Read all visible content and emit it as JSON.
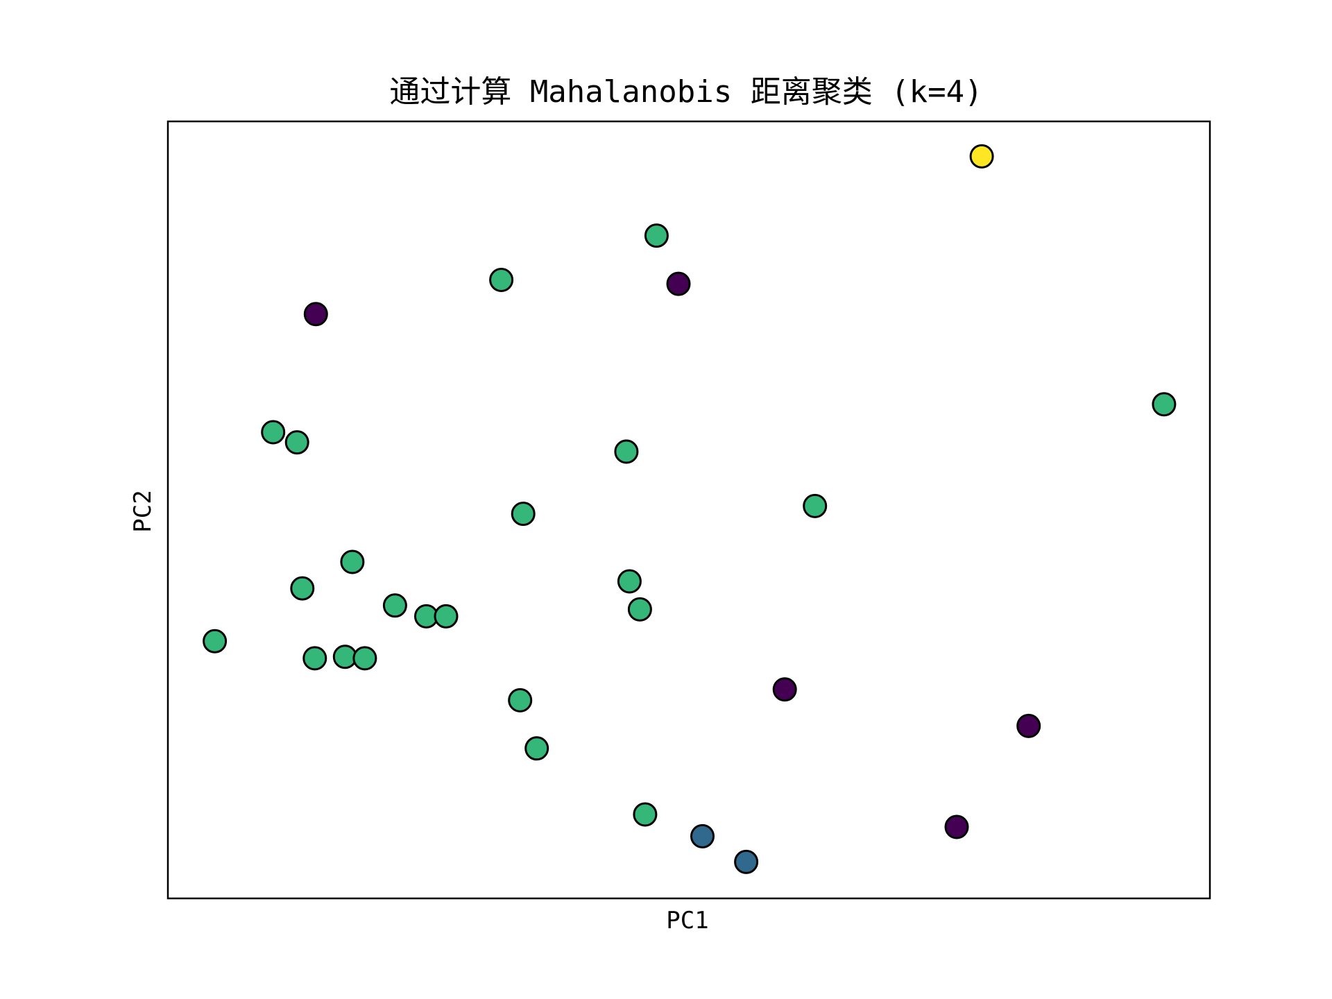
{
  "chart_data": {
    "type": "scatter",
    "title": "通过计算 Mahalanobis 距离聚类 (k=4)",
    "xlabel": "PC1",
    "ylabel": "PC2",
    "xlim": [
      0,
      1
    ],
    "ylim": [
      0,
      1
    ],
    "grid": false,
    "show_ticks": false,
    "legend": "none",
    "cluster_colors": {
      "0": "#440154",
      "1": "#31688e",
      "2": "#35b779",
      "3": "#fde725"
    },
    "points": [
      {
        "x": 0.781,
        "y": 0.955,
        "cluster": 3
      },
      {
        "x": 0.469,
        "y": 0.853,
        "cluster": 2
      },
      {
        "x": 0.32,
        "y": 0.796,
        "cluster": 2
      },
      {
        "x": 0.49,
        "y": 0.791,
        "cluster": 0
      },
      {
        "x": 0.142,
        "y": 0.752,
        "cluster": 0
      },
      {
        "x": 0.956,
        "y": 0.636,
        "cluster": 2
      },
      {
        "x": 0.101,
        "y": 0.6,
        "cluster": 2
      },
      {
        "x": 0.124,
        "y": 0.587,
        "cluster": 2
      },
      {
        "x": 0.44,
        "y": 0.575,
        "cluster": 2
      },
      {
        "x": 0.621,
        "y": 0.505,
        "cluster": 2
      },
      {
        "x": 0.341,
        "y": 0.495,
        "cluster": 2
      },
      {
        "x": 0.177,
        "y": 0.433,
        "cluster": 2
      },
      {
        "x": 0.129,
        "y": 0.399,
        "cluster": 2
      },
      {
        "x": 0.443,
        "y": 0.408,
        "cluster": 2
      },
      {
        "x": 0.218,
        "y": 0.377,
        "cluster": 2
      },
      {
        "x": 0.248,
        "y": 0.363,
        "cluster": 2
      },
      {
        "x": 0.267,
        "y": 0.363,
        "cluster": 2
      },
      {
        "x": 0.453,
        "y": 0.372,
        "cluster": 2
      },
      {
        "x": 0.045,
        "y": 0.331,
        "cluster": 2
      },
      {
        "x": 0.141,
        "y": 0.309,
        "cluster": 2
      },
      {
        "x": 0.17,
        "y": 0.311,
        "cluster": 2
      },
      {
        "x": 0.189,
        "y": 0.309,
        "cluster": 2
      },
      {
        "x": 0.592,
        "y": 0.269,
        "cluster": 0
      },
      {
        "x": 0.338,
        "y": 0.255,
        "cluster": 2
      },
      {
        "x": 0.826,
        "y": 0.222,
        "cluster": 0
      },
      {
        "x": 0.354,
        "y": 0.193,
        "cluster": 2
      },
      {
        "x": 0.458,
        "y": 0.108,
        "cluster": 2
      },
      {
        "x": 0.513,
        "y": 0.08,
        "cluster": 1
      },
      {
        "x": 0.757,
        "y": 0.092,
        "cluster": 0
      },
      {
        "x": 0.555,
        "y": 0.047,
        "cluster": 1
      }
    ]
  }
}
